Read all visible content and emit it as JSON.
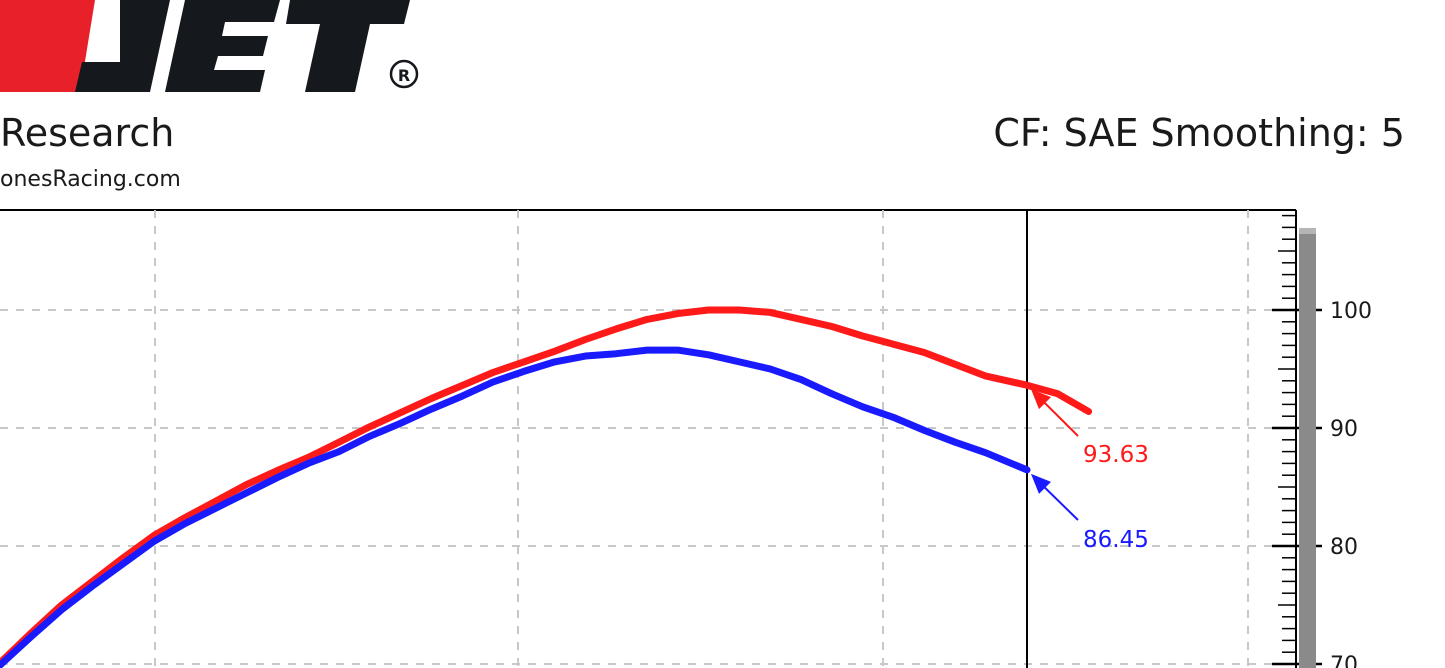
{
  "header": {
    "logo_text": "DJET",
    "logo_reg_mark": "®",
    "research_text": "Research",
    "website_text": "onesRacing.com",
    "cf_text": "CF: SAE Smoothing: 5"
  },
  "colors": {
    "series_red": "#ff1a1a",
    "series_blue": "#1a1aff",
    "logo_red": "#e8202a",
    "logo_dark": "#15181d",
    "grid": "#c8c8c8"
  },
  "chart_data": {
    "type": "line",
    "xlabel": "",
    "ylabel": "",
    "ylim": [
      69,
      108
    ],
    "y_ticks": [
      70,
      80,
      90,
      100
    ],
    "grid": true,
    "legend": "none",
    "cursor_x": 0.7,
    "series": [
      {
        "color": "#ff1a1a",
        "points": [
          [
            0.0,
            70.1
          ],
          [
            0.03,
            72.6
          ],
          [
            0.06,
            75.0
          ],
          [
            0.09,
            77.0
          ],
          [
            0.12,
            79.0
          ],
          [
            0.15,
            80.9
          ],
          [
            0.18,
            82.4
          ],
          [
            0.21,
            83.8
          ],
          [
            0.24,
            85.2
          ],
          [
            0.27,
            86.4
          ],
          [
            0.3,
            87.5
          ],
          [
            0.33,
            88.8
          ],
          [
            0.36,
            90.1
          ],
          [
            0.39,
            91.3
          ],
          [
            0.42,
            92.5
          ],
          [
            0.45,
            93.6
          ],
          [
            0.48,
            94.7
          ],
          [
            0.51,
            95.6
          ],
          [
            0.54,
            96.5
          ],
          [
            0.57,
            97.5
          ],
          [
            0.6,
            98.4
          ],
          [
            0.63,
            99.2
          ],
          [
            0.66,
            99.7
          ],
          [
            0.69,
            100.0
          ],
          [
            0.72,
            100.0
          ],
          [
            0.75,
            99.8
          ],
          [
            0.78,
            99.2
          ],
          [
            0.81,
            98.6
          ],
          [
            0.84,
            97.8
          ],
          [
            0.87,
            97.1
          ],
          [
            0.9,
            96.4
          ],
          [
            0.93,
            95.4
          ],
          [
            0.96,
            94.4
          ],
          [
            1.0,
            93.63
          ],
          [
            1.03,
            92.9
          ],
          [
            1.06,
            91.4
          ]
        ],
        "callout": "93.63"
      },
      {
        "color": "#1a1aff",
        "points": [
          [
            0.0,
            69.9
          ],
          [
            0.03,
            72.3
          ],
          [
            0.06,
            74.6
          ],
          [
            0.09,
            76.6
          ],
          [
            0.12,
            78.5
          ],
          [
            0.15,
            80.4
          ],
          [
            0.18,
            81.9
          ],
          [
            0.21,
            83.2
          ],
          [
            0.24,
            84.5
          ],
          [
            0.27,
            85.8
          ],
          [
            0.3,
            87.0
          ],
          [
            0.33,
            88.0
          ],
          [
            0.36,
            89.3
          ],
          [
            0.39,
            90.4
          ],
          [
            0.42,
            91.6
          ],
          [
            0.45,
            92.7
          ],
          [
            0.48,
            93.9
          ],
          [
            0.51,
            94.8
          ],
          [
            0.54,
            95.6
          ],
          [
            0.57,
            96.1
          ],
          [
            0.6,
            96.3
          ],
          [
            0.63,
            96.6
          ],
          [
            0.66,
            96.6
          ],
          [
            0.69,
            96.2
          ],
          [
            0.72,
            95.6
          ],
          [
            0.75,
            95.0
          ],
          [
            0.78,
            94.1
          ],
          [
            0.81,
            92.9
          ],
          [
            0.84,
            91.8
          ],
          [
            0.87,
            90.9
          ],
          [
            0.9,
            89.8
          ],
          [
            0.93,
            88.8
          ],
          [
            0.96,
            87.9
          ],
          [
            1.0,
            86.45
          ]
        ],
        "callout": "86.45"
      }
    ]
  }
}
